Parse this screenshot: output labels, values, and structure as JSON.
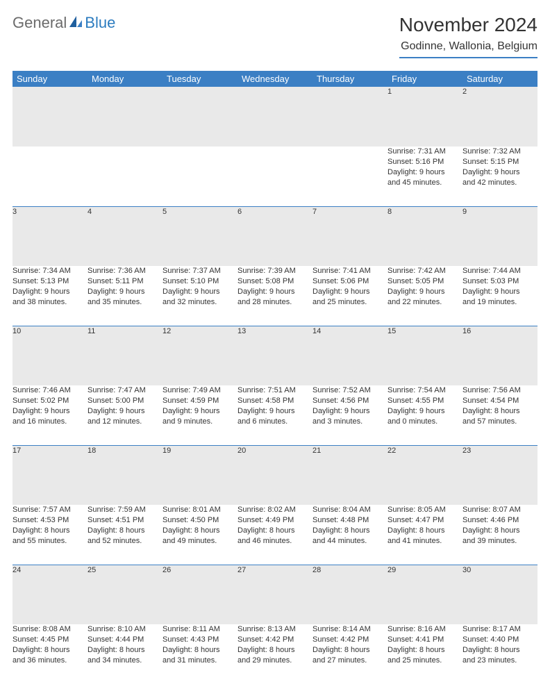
{
  "logo": {
    "general": "General",
    "blue": "Blue"
  },
  "title": "November 2024",
  "location": "Godinne, Wallonia, Belgium",
  "theme": {
    "header_bg": "#3b7fc4",
    "daynum_bg": "#e9e9e9"
  },
  "day_names": [
    "Sunday",
    "Monday",
    "Tuesday",
    "Wednesday",
    "Thursday",
    "Friday",
    "Saturday"
  ],
  "weeks": [
    {
      "nums": [
        "",
        "",
        "",
        "",
        "",
        "1",
        "2"
      ],
      "cells": [
        {
          "sunrise": "",
          "sunset": "",
          "day1": "",
          "day2": ""
        },
        {
          "sunrise": "",
          "sunset": "",
          "day1": "",
          "day2": ""
        },
        {
          "sunrise": "",
          "sunset": "",
          "day1": "",
          "day2": ""
        },
        {
          "sunrise": "",
          "sunset": "",
          "day1": "",
          "day2": ""
        },
        {
          "sunrise": "",
          "sunset": "",
          "day1": "",
          "day2": ""
        },
        {
          "sunrise": "Sunrise: 7:31 AM",
          "sunset": "Sunset: 5:16 PM",
          "day1": "Daylight: 9 hours",
          "day2": "and 45 minutes."
        },
        {
          "sunrise": "Sunrise: 7:32 AM",
          "sunset": "Sunset: 5:15 PM",
          "day1": "Daylight: 9 hours",
          "day2": "and 42 minutes."
        }
      ]
    },
    {
      "nums": [
        "3",
        "4",
        "5",
        "6",
        "7",
        "8",
        "9"
      ],
      "cells": [
        {
          "sunrise": "Sunrise: 7:34 AM",
          "sunset": "Sunset: 5:13 PM",
          "day1": "Daylight: 9 hours",
          "day2": "and 38 minutes."
        },
        {
          "sunrise": "Sunrise: 7:36 AM",
          "sunset": "Sunset: 5:11 PM",
          "day1": "Daylight: 9 hours",
          "day2": "and 35 minutes."
        },
        {
          "sunrise": "Sunrise: 7:37 AM",
          "sunset": "Sunset: 5:10 PM",
          "day1": "Daylight: 9 hours",
          "day2": "and 32 minutes."
        },
        {
          "sunrise": "Sunrise: 7:39 AM",
          "sunset": "Sunset: 5:08 PM",
          "day1": "Daylight: 9 hours",
          "day2": "and 28 minutes."
        },
        {
          "sunrise": "Sunrise: 7:41 AM",
          "sunset": "Sunset: 5:06 PM",
          "day1": "Daylight: 9 hours",
          "day2": "and 25 minutes."
        },
        {
          "sunrise": "Sunrise: 7:42 AM",
          "sunset": "Sunset: 5:05 PM",
          "day1": "Daylight: 9 hours",
          "day2": "and 22 minutes."
        },
        {
          "sunrise": "Sunrise: 7:44 AM",
          "sunset": "Sunset: 5:03 PM",
          "day1": "Daylight: 9 hours",
          "day2": "and 19 minutes."
        }
      ]
    },
    {
      "nums": [
        "10",
        "11",
        "12",
        "13",
        "14",
        "15",
        "16"
      ],
      "cells": [
        {
          "sunrise": "Sunrise: 7:46 AM",
          "sunset": "Sunset: 5:02 PM",
          "day1": "Daylight: 9 hours",
          "day2": "and 16 minutes."
        },
        {
          "sunrise": "Sunrise: 7:47 AM",
          "sunset": "Sunset: 5:00 PM",
          "day1": "Daylight: 9 hours",
          "day2": "and 12 minutes."
        },
        {
          "sunrise": "Sunrise: 7:49 AM",
          "sunset": "Sunset: 4:59 PM",
          "day1": "Daylight: 9 hours",
          "day2": "and 9 minutes."
        },
        {
          "sunrise": "Sunrise: 7:51 AM",
          "sunset": "Sunset: 4:58 PM",
          "day1": "Daylight: 9 hours",
          "day2": "and 6 minutes."
        },
        {
          "sunrise": "Sunrise: 7:52 AM",
          "sunset": "Sunset: 4:56 PM",
          "day1": "Daylight: 9 hours",
          "day2": "and 3 minutes."
        },
        {
          "sunrise": "Sunrise: 7:54 AM",
          "sunset": "Sunset: 4:55 PM",
          "day1": "Daylight: 9 hours",
          "day2": "and 0 minutes."
        },
        {
          "sunrise": "Sunrise: 7:56 AM",
          "sunset": "Sunset: 4:54 PM",
          "day1": "Daylight: 8 hours",
          "day2": "and 57 minutes."
        }
      ]
    },
    {
      "nums": [
        "17",
        "18",
        "19",
        "20",
        "21",
        "22",
        "23"
      ],
      "cells": [
        {
          "sunrise": "Sunrise: 7:57 AM",
          "sunset": "Sunset: 4:53 PM",
          "day1": "Daylight: 8 hours",
          "day2": "and 55 minutes."
        },
        {
          "sunrise": "Sunrise: 7:59 AM",
          "sunset": "Sunset: 4:51 PM",
          "day1": "Daylight: 8 hours",
          "day2": "and 52 minutes."
        },
        {
          "sunrise": "Sunrise: 8:01 AM",
          "sunset": "Sunset: 4:50 PM",
          "day1": "Daylight: 8 hours",
          "day2": "and 49 minutes."
        },
        {
          "sunrise": "Sunrise: 8:02 AM",
          "sunset": "Sunset: 4:49 PM",
          "day1": "Daylight: 8 hours",
          "day2": "and 46 minutes."
        },
        {
          "sunrise": "Sunrise: 8:04 AM",
          "sunset": "Sunset: 4:48 PM",
          "day1": "Daylight: 8 hours",
          "day2": "and 44 minutes."
        },
        {
          "sunrise": "Sunrise: 8:05 AM",
          "sunset": "Sunset: 4:47 PM",
          "day1": "Daylight: 8 hours",
          "day2": "and 41 minutes."
        },
        {
          "sunrise": "Sunrise: 8:07 AM",
          "sunset": "Sunset: 4:46 PM",
          "day1": "Daylight: 8 hours",
          "day2": "and 39 minutes."
        }
      ]
    },
    {
      "nums": [
        "24",
        "25",
        "26",
        "27",
        "28",
        "29",
        "30"
      ],
      "cells": [
        {
          "sunrise": "Sunrise: 8:08 AM",
          "sunset": "Sunset: 4:45 PM",
          "day1": "Daylight: 8 hours",
          "day2": "and 36 minutes."
        },
        {
          "sunrise": "Sunrise: 8:10 AM",
          "sunset": "Sunset: 4:44 PM",
          "day1": "Daylight: 8 hours",
          "day2": "and 34 minutes."
        },
        {
          "sunrise": "Sunrise: 8:11 AM",
          "sunset": "Sunset: 4:43 PM",
          "day1": "Daylight: 8 hours",
          "day2": "and 31 minutes."
        },
        {
          "sunrise": "Sunrise: 8:13 AM",
          "sunset": "Sunset: 4:42 PM",
          "day1": "Daylight: 8 hours",
          "day2": "and 29 minutes."
        },
        {
          "sunrise": "Sunrise: 8:14 AM",
          "sunset": "Sunset: 4:42 PM",
          "day1": "Daylight: 8 hours",
          "day2": "and 27 minutes."
        },
        {
          "sunrise": "Sunrise: 8:16 AM",
          "sunset": "Sunset: 4:41 PM",
          "day1": "Daylight: 8 hours",
          "day2": "and 25 minutes."
        },
        {
          "sunrise": "Sunrise: 8:17 AM",
          "sunset": "Sunset: 4:40 PM",
          "day1": "Daylight: 8 hours",
          "day2": "and 23 minutes."
        }
      ]
    }
  ]
}
